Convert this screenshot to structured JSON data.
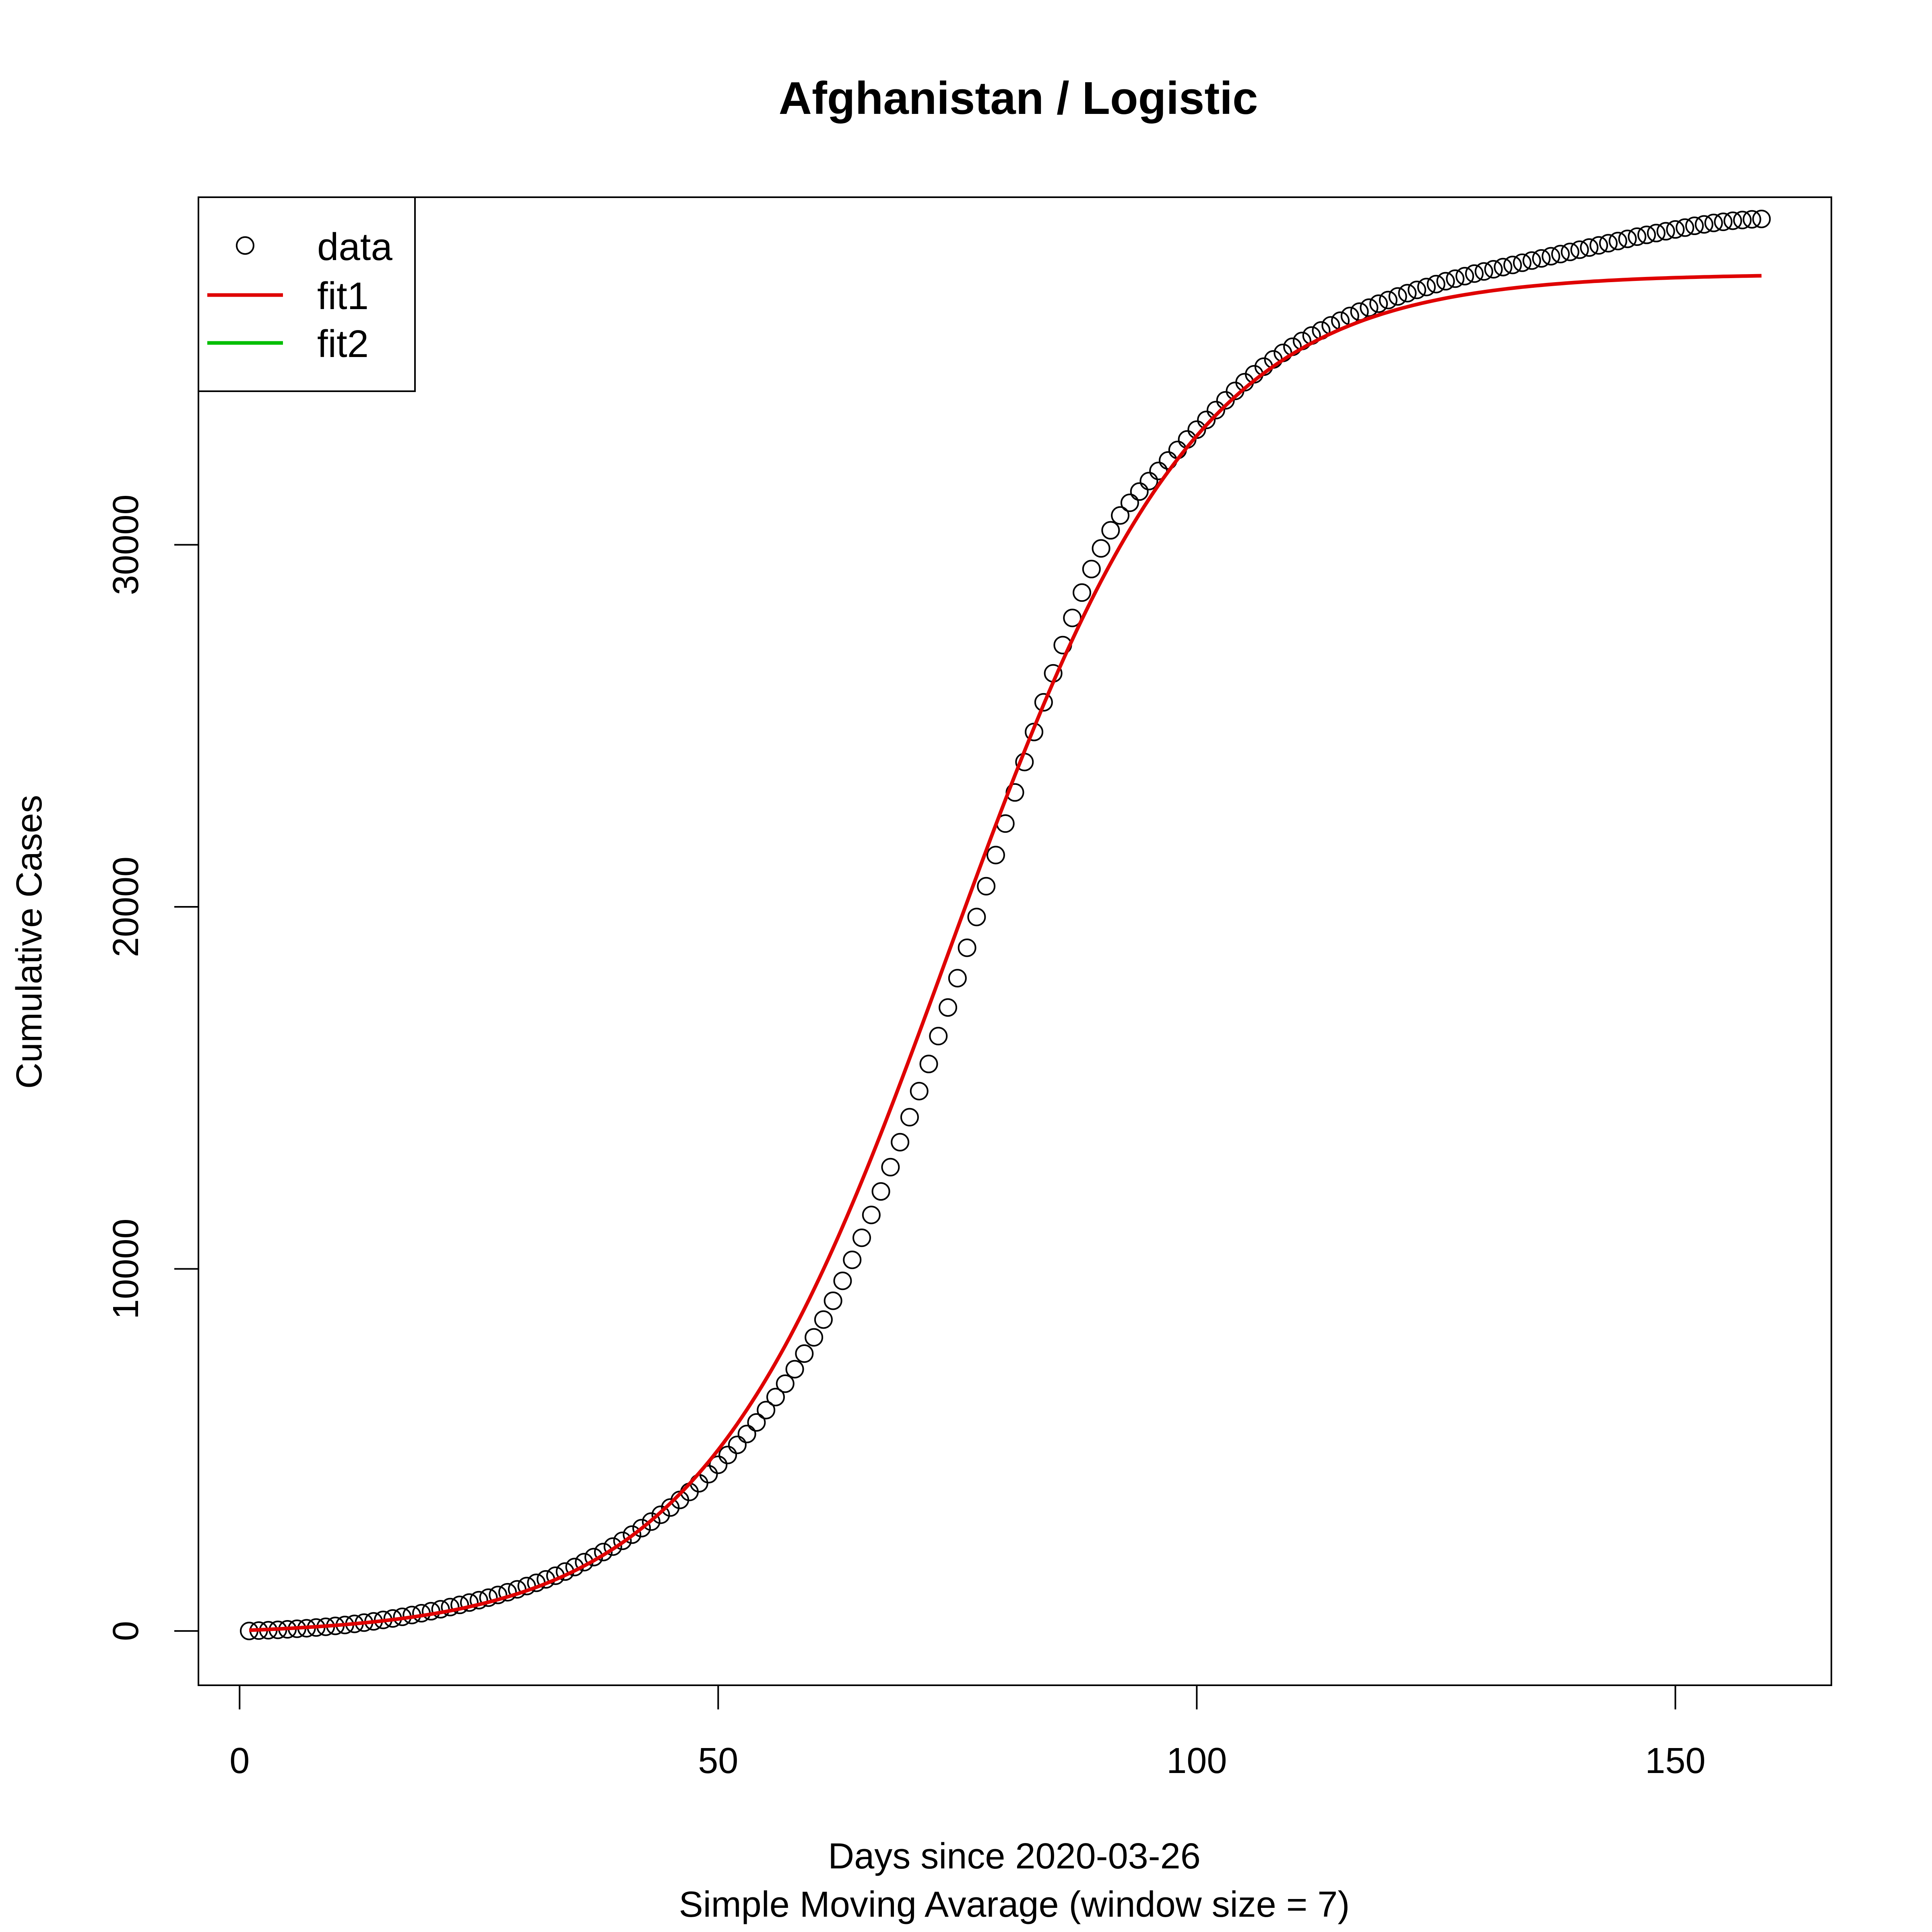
{
  "chart_data": {
    "type": "scatter",
    "title": "Afghanistan / Logistic",
    "xlabel": "Days since 2020-03-26",
    "subtitle": "Simple Moving Avarage (window size = 7)",
    "ylabel": "Cumulative Cases",
    "xlim": [
      -4.3,
      166.3
    ],
    "ylim": [
      -1500,
      39600
    ],
    "x_ticks": [
      {
        "value": 0,
        "label": "0"
      },
      {
        "value": 50,
        "label": "50"
      },
      {
        "value": 100,
        "label": "100"
      },
      {
        "value": 150,
        "label": "150"
      }
    ],
    "y_ticks": [
      {
        "value": 0,
        "label": "0"
      },
      {
        "value": 10000,
        "label": "10000"
      },
      {
        "value": 20000,
        "label": "20000"
      },
      {
        "value": 30000,
        "label": "30000"
      }
    ],
    "grid": false,
    "legend": {
      "position": "top-left",
      "entries": [
        {
          "label": "data",
          "type": "point",
          "color": "#000000"
        },
        {
          "label": "fit1",
          "type": "line",
          "color": "#DF0000"
        },
        {
          "label": "fit2",
          "type": "line",
          "color": "#00BE00"
        }
      ]
    },
    "series": [
      {
        "name": "data",
        "type": "points",
        "color": "#000000",
        "x": [
          1,
          2,
          3,
          4,
          5,
          6,
          7,
          8,
          9,
          10,
          11,
          12,
          13,
          14,
          15,
          16,
          17,
          18,
          19,
          20,
          21,
          22,
          23,
          24,
          25,
          26,
          27,
          28,
          29,
          30,
          31,
          32,
          33,
          34,
          35,
          36,
          37,
          38,
          39,
          40,
          41,
          42,
          43,
          44,
          45,
          46,
          47,
          48,
          49,
          50,
          51,
          52,
          53,
          54,
          55,
          56,
          57,
          58,
          59,
          60,
          61,
          62,
          63,
          64,
          65,
          66,
          67,
          68,
          69,
          70,
          71,
          72,
          73,
          74,
          75,
          76,
          77,
          78,
          79,
          80,
          81,
          82,
          83,
          84,
          85,
          86,
          87,
          88,
          89,
          90,
          91,
          92,
          93,
          94,
          95,
          96,
          97,
          98,
          99,
          100,
          101,
          102,
          103,
          104,
          105,
          106,
          107,
          108,
          109,
          110,
          111,
          112,
          113,
          114,
          115,
          116,
          117,
          118,
          119,
          120,
          121,
          122,
          123,
          124,
          125,
          126,
          127,
          128,
          129,
          130,
          131,
          132,
          133,
          134,
          135,
          136,
          137,
          138,
          139,
          140,
          141,
          142,
          143,
          144,
          145,
          146,
          147,
          148,
          149,
          150,
          151,
          152,
          153,
          154,
          155,
          156,
          157,
          158,
          159
        ],
        "y": [
          0,
          10,
          20,
          30,
          45,
          60,
          75,
          95,
          115,
          140,
          165,
          195,
          230,
          265,
          305,
          345,
          390,
          440,
          490,
          545,
          600,
          660,
          720,
          785,
          850,
          920,
          995,
          1070,
          1150,
          1240,
          1330,
          1425,
          1525,
          1640,
          1765,
          1900,
          2040,
          2180,
          2330,
          2490,
          2660,
          2840,
          3020,
          3210,
          3410,
          3620,
          3840,
          4080,
          4330,
          4590,
          4860,
          5140,
          5440,
          5760,
          6100,
          6460,
          6830,
          7230,
          7660,
          8110,
          8600,
          9120,
          9670,
          10250,
          10860,
          11490,
          12140,
          12810,
          13500,
          14190,
          14910,
          15660,
          16430,
          17220,
          18030,
          18870,
          19720,
          20570,
          21430,
          22300,
          23160,
          24000,
          24830,
          25650,
          26450,
          27230,
          27980,
          28680,
          29330,
          29900,
          30400,
          30810,
          31160,
          31470,
          31760,
          32040,
          32330,
          32620,
          32910,
          33180,
          33450,
          33720,
          33990,
          34250,
          34490,
          34710,
          34920,
          35120,
          35300,
          35470,
          35630,
          35780,
          35920,
          36060,
          36190,
          36320,
          36440,
          36550,
          36660,
          36760,
          36860,
          36950,
          37040,
          37120,
          37200,
          37280,
          37350,
          37420,
          37490,
          37550,
          37610,
          37670,
          37730,
          37790,
          37850,
          37910,
          37970,
          38030,
          38090,
          38150,
          38210,
          38270,
          38330,
          38390,
          38450,
          38510,
          38560,
          38610,
          38660,
          38710,
          38760,
          38810,
          38850,
          38890,
          38920,
          38950,
          38970,
          38990,
          39000
        ]
      },
      {
        "name": "fit1",
        "type": "line",
        "color": "#DF0000",
        "model": "logistic",
        "params": {
          "K": 37600,
          "r": 0.077,
          "x0": 74,
          "offset": -115
        },
        "x_range": [
          1,
          159
        ]
      },
      {
        "name": "fit2",
        "type": "line",
        "color": "#00BE00",
        "x": [],
        "y": []
      }
    ]
  }
}
